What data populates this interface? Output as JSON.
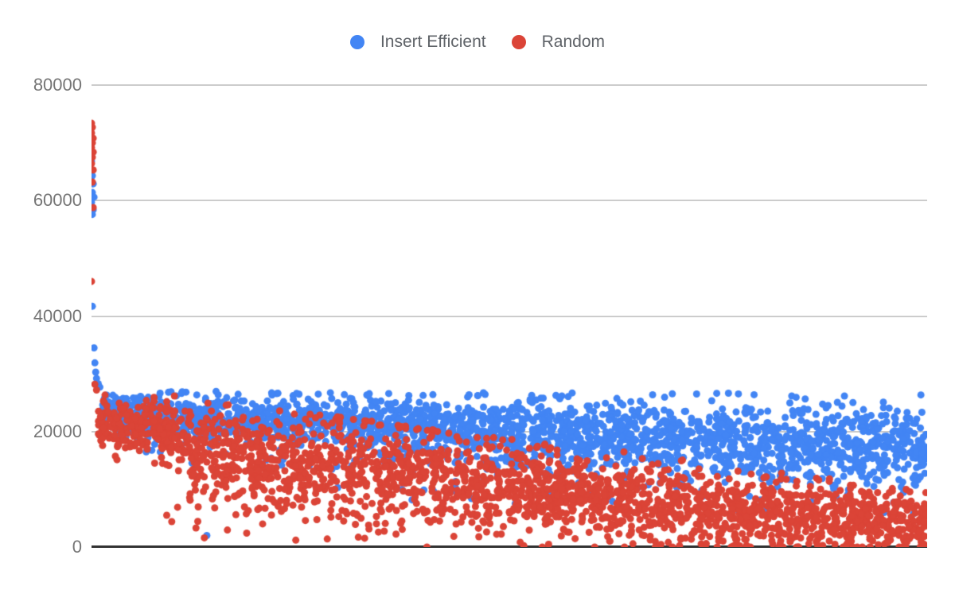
{
  "chart_data": {
    "type": "scatter",
    "title": "",
    "legend": {
      "position": "top",
      "entries": [
        {
          "label": "Insert Efficient",
          "color": "#4285F4"
        },
        {
          "label": "Random",
          "color": "#DB4437"
        }
      ]
    },
    "x_axis": {
      "label": "",
      "ticks_visible": false,
      "note": "unlabeled trial index, ~2400 points per series left-to-right"
    },
    "y_axis": {
      "label": "",
      "range": [
        0,
        80000
      ],
      "gridlines": true,
      "ticks": [
        "80000",
        "60000",
        "40000",
        "20000",
        "0"
      ]
    },
    "style": {
      "point_radius": 4.5,
      "gridline_color": "#cccccc",
      "baseline_color": "#333333",
      "tick_label_color": "#757575",
      "legend_text_color": "#5f6368",
      "background": "#ffffff"
    },
    "seed": 7,
    "series": [
      {
        "name": "Insert Efficient",
        "color": "#4285F4",
        "outlier_points": [
          [
            0.0,
            66800
          ],
          [
            0.001,
            64300
          ],
          [
            0.002,
            62900
          ],
          [
            0.001,
            61400
          ],
          [
            0.003,
            60600
          ],
          [
            0.0,
            59700
          ],
          [
            0.002,
            58400
          ],
          [
            0.001,
            57600
          ],
          [
            0.001,
            41700
          ],
          [
            0.003,
            34500
          ],
          [
            0.004,
            31900
          ],
          [
            0.005,
            30300
          ],
          [
            0.006,
            29200
          ],
          [
            0.008,
            28300
          ],
          [
            0.01,
            27700
          ],
          [
            0.138,
            2000
          ]
        ],
        "band": {
          "n": 2400,
          "t_range": [
            0.012,
            1.0
          ],
          "center_keys": [
            [
              0.012,
              23300
            ],
            [
              0.05,
              22700
            ],
            [
              0.15,
              22000
            ],
            [
              0.3,
              21300
            ],
            [
              0.5,
              19900
            ],
            [
              0.7,
              18600
            ],
            [
              0.85,
              17900
            ],
            [
              1.0,
              17200
            ]
          ],
          "spread_keys": [
            [
              0.012,
              1700
            ],
            [
              0.1,
              2000
            ],
            [
              0.3,
              2400
            ],
            [
              0.5,
              2900
            ],
            [
              0.7,
              3300
            ],
            [
              1.0,
              3700
            ]
          ],
          "min_keys": [
            [
              0.012,
              17000
            ],
            [
              0.1,
              13000
            ],
            [
              0.3,
              8500
            ],
            [
              0.6,
              6500
            ],
            [
              1.0,
              5200
            ]
          ],
          "max_keys": [
            [
              0.012,
              27500
            ],
            [
              0.2,
              26800
            ],
            [
              1.0,
              26600
            ]
          ],
          "low_straggler_frac": 0.035
        }
      },
      {
        "name": "Random",
        "color": "#DB4437",
        "outlier_points": [
          [
            0.0,
            73400
          ],
          [
            0.001,
            72700
          ],
          [
            0.0,
            71700
          ],
          [
            0.002,
            70800
          ],
          [
            0.001,
            70000
          ],
          [
            0.0,
            69200
          ],
          [
            0.002,
            68400
          ],
          [
            0.001,
            67500
          ],
          [
            0.0,
            66400
          ],
          [
            0.002,
            65300
          ],
          [
            0.001,
            63200
          ],
          [
            0.002,
            58800
          ],
          [
            0.0,
            46000
          ],
          [
            0.004,
            28200
          ],
          [
            0.006,
            27200
          ],
          [
            0.09,
            5500
          ],
          [
            0.096,
            4400
          ],
          [
            0.103,
            6900
          ],
          [
            0.118,
            8100
          ],
          [
            0.125,
            3300
          ],
          [
            0.135,
            1600
          ]
        ],
        "band": {
          "n": 2400,
          "t_range": [
            0.008,
            1.0
          ],
          "center_keys": [
            [
              0.008,
              21600
            ],
            [
              0.05,
              21200
            ],
            [
              0.09,
              20600
            ],
            [
              0.13,
              16500
            ],
            [
              0.3,
              13600
            ],
            [
              0.5,
              10400
            ],
            [
              0.7,
              6900
            ],
            [
              0.85,
              5300
            ],
            [
              1.0,
              4400
            ]
          ],
          "spread_keys": [
            [
              0.008,
              2100
            ],
            [
              0.09,
              2500
            ],
            [
              0.13,
              4300
            ],
            [
              0.3,
              4800
            ],
            [
              0.5,
              4200
            ],
            [
              0.7,
              3400
            ],
            [
              1.0,
              2700
            ]
          ],
          "min_keys": [
            [
              0.008,
              15500
            ],
            [
              0.095,
              14000
            ],
            [
              0.105,
              4500
            ],
            [
              0.2,
              1500
            ],
            [
              0.32,
              0
            ],
            [
              1.0,
              0
            ]
          ],
          "max_keys": [
            [
              0.008,
              26800
            ],
            [
              0.09,
              26500
            ],
            [
              0.2,
              24000
            ],
            [
              0.3,
              22500
            ],
            [
              0.5,
              18700
            ],
            [
              0.7,
              15500
            ],
            [
              0.9,
              11500
            ],
            [
              1.0,
              9800
            ]
          ],
          "low_straggler_frac": 0.02
        }
      }
    ]
  }
}
